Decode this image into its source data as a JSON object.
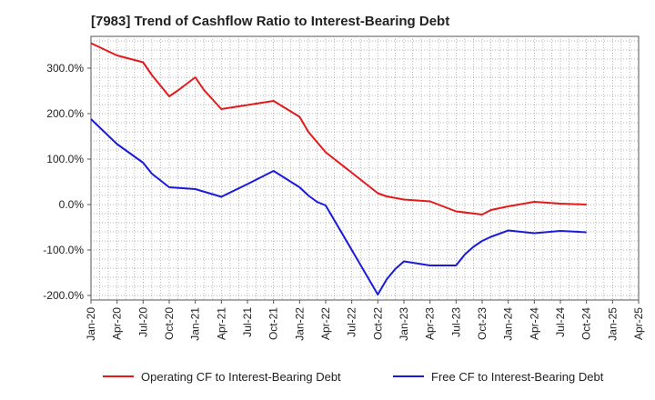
{
  "chart_data": {
    "type": "line",
    "title": "[7983]  Trend of Cashflow Ratio to Interest-Bearing Debt",
    "xlabel": "",
    "ylabel": "",
    "x_tick_labels": [
      "Jan-20",
      "Apr-20",
      "Jul-20",
      "Oct-20",
      "Jan-21",
      "Apr-21",
      "Jul-21",
      "Oct-21",
      "Jan-22",
      "Apr-22",
      "Jul-22",
      "Oct-22",
      "Jan-23",
      "Apr-23",
      "Jul-23",
      "Oct-23",
      "Jan-24",
      "Apr-24",
      "Jul-24",
      "Oct-24",
      "Jan-25",
      "Apr-25"
    ],
    "y_tick_labels": [
      "300.0%",
      "200.0%",
      "100.0%",
      "0.0%",
      "-100.0%",
      "-200.0%"
    ],
    "y_ticks": [
      300,
      200,
      100,
      0,
      -100,
      -200
    ],
    "ylim": [
      -210,
      370
    ],
    "y_unit": "%",
    "grid": true,
    "legend_position": "bottom",
    "series": [
      {
        "name": "Operating CF to Interest-Bearing Debt",
        "color": "#e31a1c",
        "points": [
          [
            "2020-01",
            355
          ],
          [
            "2020-04",
            328
          ],
          [
            "2020-07",
            313
          ],
          [
            "2020-08",
            285
          ],
          [
            "2020-10",
            238
          ],
          [
            "2020-11",
            251
          ],
          [
            "2021-01",
            280
          ],
          [
            "2021-02",
            252
          ],
          [
            "2021-04",
            210
          ],
          [
            "2021-07",
            219
          ],
          [
            "2021-10",
            228
          ],
          [
            "2022-01",
            193
          ],
          [
            "2022-02",
            160
          ],
          [
            "2022-04",
            115
          ],
          [
            "2022-07",
            70
          ],
          [
            "2022-10",
            25
          ],
          [
            "2022-11",
            18
          ],
          [
            "2023-01",
            11
          ],
          [
            "2023-04",
            7
          ],
          [
            "2023-07",
            -15
          ],
          [
            "2023-10",
            -22
          ],
          [
            "2023-11",
            -12
          ],
          [
            "2024-01",
            -4
          ],
          [
            "2024-04",
            6
          ],
          [
            "2024-07",
            2
          ],
          [
            "2024-10",
            0
          ]
        ]
      },
      {
        "name": "Free CF to Interest-Bearing Debt",
        "color": "#1a1adc",
        "points": [
          [
            "2020-01",
            188
          ],
          [
            "2020-04",
            133
          ],
          [
            "2020-07",
            92
          ],
          [
            "2020-08",
            68
          ],
          [
            "2020-10",
            38
          ],
          [
            "2021-01",
            34
          ],
          [
            "2021-04",
            17
          ],
          [
            "2021-07",
            45
          ],
          [
            "2021-10",
            74
          ],
          [
            "2022-01",
            38
          ],
          [
            "2022-02",
            20
          ],
          [
            "2022-03",
            6
          ],
          [
            "2022-04",
            -2
          ],
          [
            "2022-07",
            -100
          ],
          [
            "2022-10",
            -198
          ],
          [
            "2022-11",
            -165
          ],
          [
            "2022-12",
            -142
          ],
          [
            "2023-01",
            -125
          ],
          [
            "2023-04",
            -134
          ],
          [
            "2023-07",
            -134
          ],
          [
            "2023-08",
            -110
          ],
          [
            "2023-09",
            -93
          ],
          [
            "2023-10",
            -80
          ],
          [
            "2023-11",
            -71
          ],
          [
            "2024-01",
            -57
          ],
          [
            "2024-04",
            -63
          ],
          [
            "2024-07",
            -58
          ],
          [
            "2024-10",
            -61
          ]
        ]
      }
    ]
  }
}
